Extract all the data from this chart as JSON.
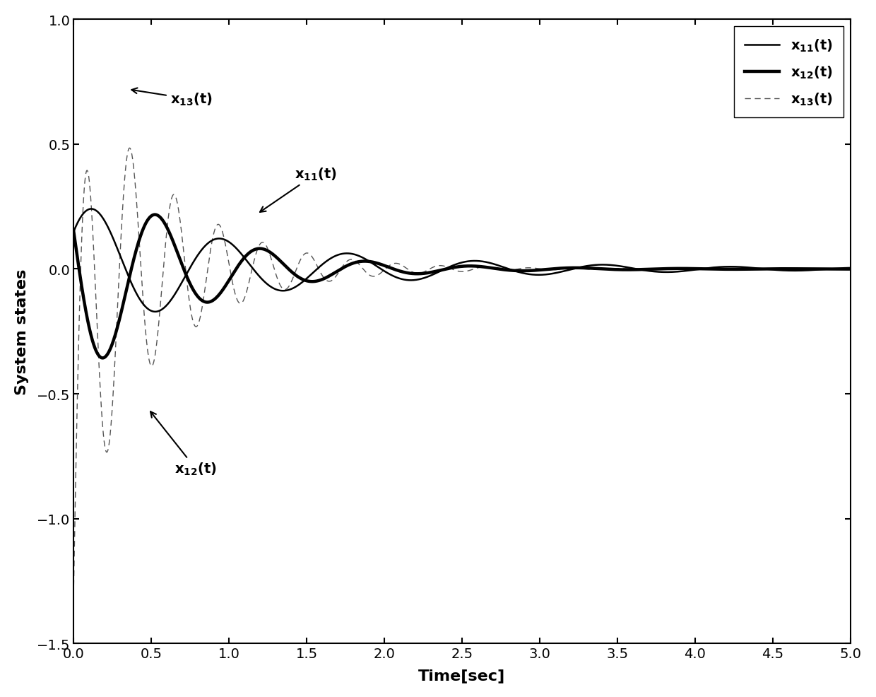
{
  "title": "",
  "xlabel": "Time[sec]",
  "ylabel": "System states",
  "xlim": [
    0,
    5
  ],
  "ylim": [
    -1.5,
    1.0
  ],
  "yticks": [
    -1.5,
    -1.0,
    -0.5,
    0,
    0.5,
    1.0
  ],
  "xticks": [
    0,
    0.5,
    1.0,
    1.5,
    2.0,
    2.5,
    3.0,
    3.5,
    4.0,
    4.5,
    5.0
  ],
  "x11_color": "#000000",
  "x11_lw": 1.8,
  "x12_color": "#000000",
  "x12_lw": 3.2,
  "x13_color": "#555555",
  "x13_lw": 1.0,
  "x13_linestyle": "--",
  "legend_loc": "upper right",
  "background_color": "#ffffff",
  "annotation_fontsize": 14
}
